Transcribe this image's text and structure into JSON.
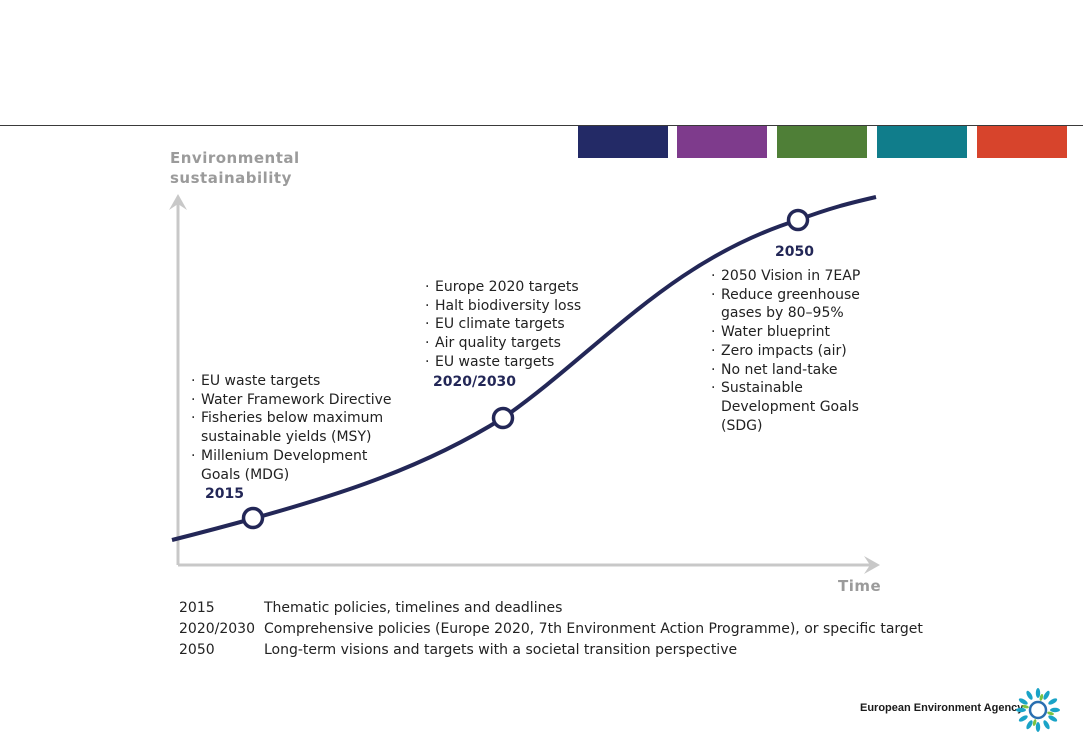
{
  "palette": [
    "#232a66",
    "#7e3b8c",
    "#4f7f37",
    "#107d8b",
    "#d7442c"
  ],
  "axes": {
    "y_title": [
      "Environmental",
      "sustainability"
    ],
    "x_title": "Time"
  },
  "milestones": [
    {
      "label": "2015",
      "items": [
        "EU waste targets",
        "Water Framework Directive",
        "Fisheries below maximum sustainable yields (MSY)",
        "Millenium Development Goals (MDG)"
      ]
    },
    {
      "label": "2020/2030",
      "items": [
        "Europe 2020 targets",
        "Halt biodiversity loss",
        "EU climate targets",
        "Air quality targets",
        "EU waste targets"
      ]
    },
    {
      "label": "2050",
      "items": [
        "2050 Vision in 7EAP",
        "Reduce greenhouse gases by 80–95%",
        "Water blueprint",
        "Zero impacts (air)",
        "No net land-take",
        "Sustainable Development Goals (SDG)"
      ]
    }
  ],
  "legend": [
    {
      "year": "2015",
      "description": "Thematic policies, timelines and deadlines"
    },
    {
      "year": "2020/2030",
      "description": "Comprehensive policies (Europe 2020, 7th Environment Action Programme), or specific target"
    },
    {
      "year": "2050",
      "description": "Long-term visions and targets with a societal transition perspective"
    }
  ],
  "footer": {
    "brand": "European Environment Agency",
    "logo_icon": "eea-logo-icon"
  }
}
